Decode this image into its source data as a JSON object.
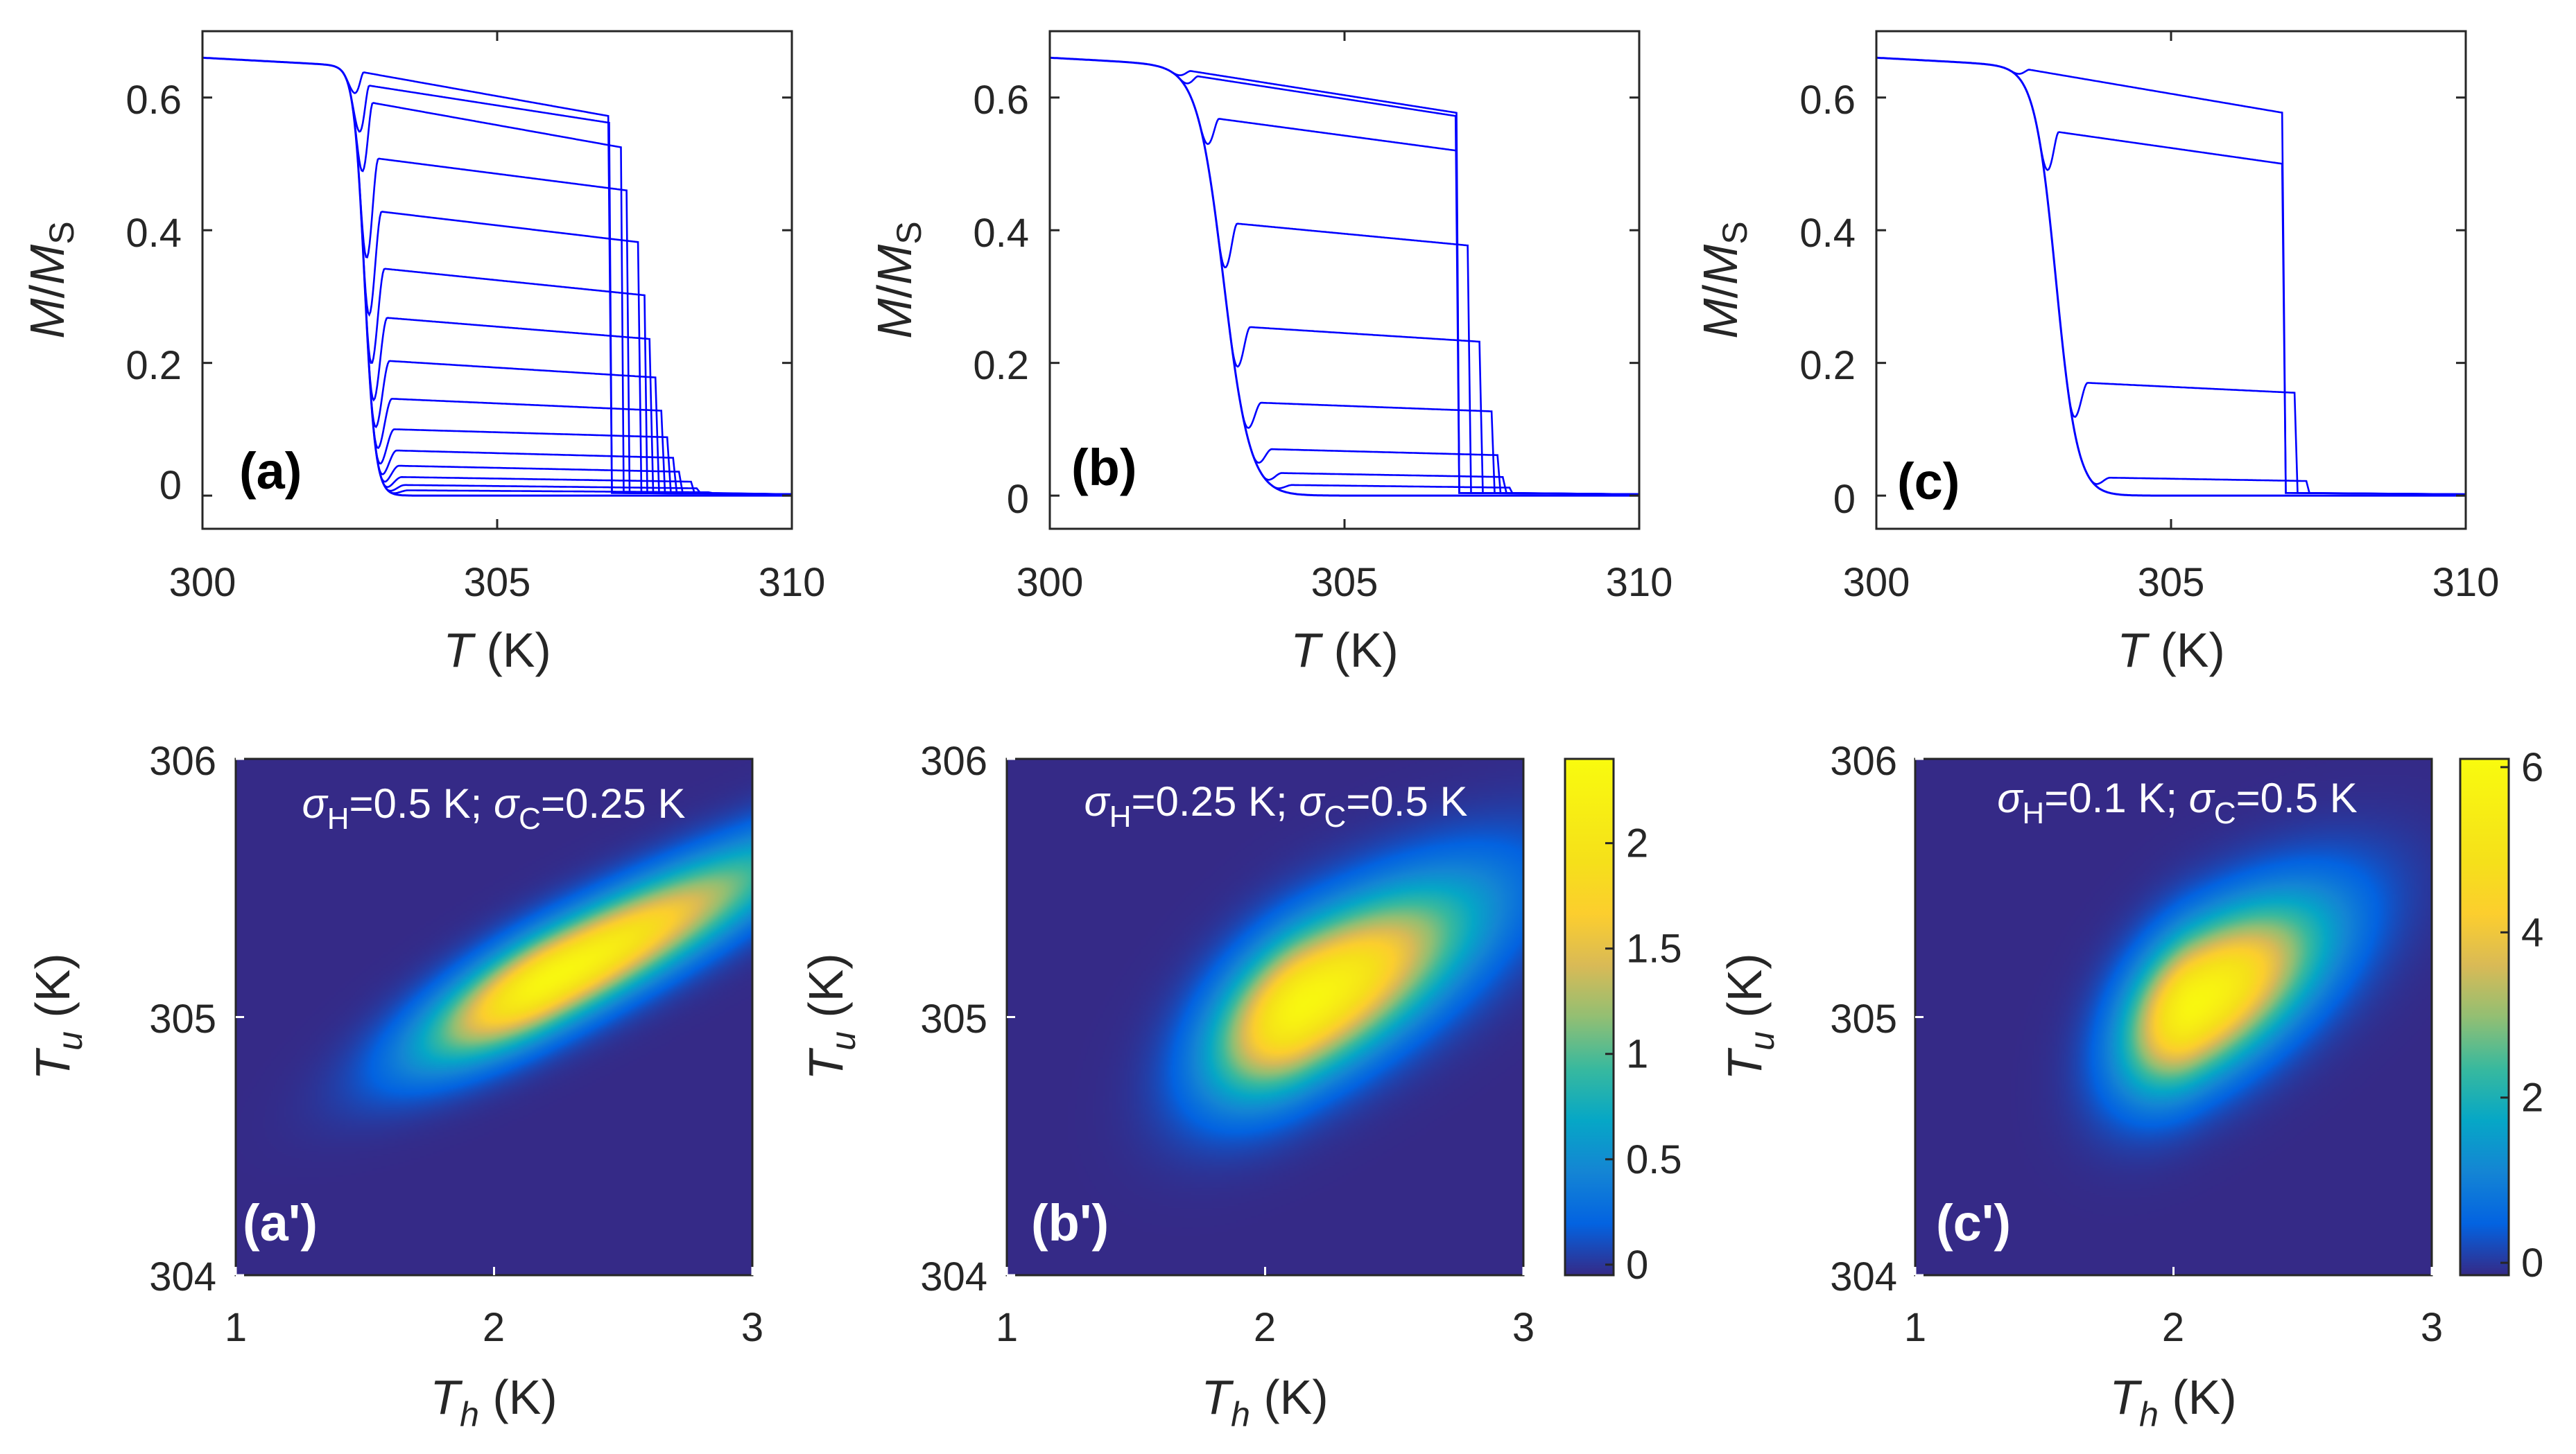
{
  "chart_data": [
    {
      "id": "a",
      "type": "line",
      "panel_label": "(a)",
      "xlabel": {
        "italic": "T",
        "rest": " (K)"
      },
      "ylabel": {
        "num": "M",
        "slash": "/",
        "den": "M",
        "sub": "S"
      },
      "xlim": [
        300,
        310
      ],
      "ylim": [
        -0.05,
        0.7
      ],
      "xticks": [
        "300",
        "305",
        "310"
      ],
      "yticks": [
        "0",
        "0.2",
        "0.4",
        "0.6"
      ],
      "yticks_values": [
        0,
        0.2,
        0.4,
        0.6
      ],
      "xticks_values": [
        300,
        305,
        310
      ],
      "series_color": "#0000ff",
      "transition_T": 302.75,
      "transition_width": 0.09,
      "reversal_curves": [
        {
          "m0": 0.638,
          "m_end": 0.572,
          "T_end": 306.9
        },
        {
          "m0": 0.618,
          "m_end": 0.562,
          "T_end": 306.9
        },
        {
          "m0": 0.592,
          "m_end": 0.525,
          "T_end": 307.1
        },
        {
          "m0": 0.508,
          "m_end": 0.46,
          "T_end": 307.2
        },
        {
          "m0": 0.428,
          "m_end": 0.382,
          "T_end": 307.4
        },
        {
          "m0": 0.342,
          "m_end": 0.302,
          "T_end": 307.5
        },
        {
          "m0": 0.268,
          "m_end": 0.236,
          "T_end": 307.6
        },
        {
          "m0": 0.203,
          "m_end": 0.178,
          "T_end": 307.7
        },
        {
          "m0": 0.146,
          "m_end": 0.128,
          "T_end": 307.8
        },
        {
          "m0": 0.1,
          "m_end": 0.088,
          "T_end": 307.9
        },
        {
          "m0": 0.068,
          "m_end": 0.057,
          "T_end": 308.0
        },
        {
          "m0": 0.045,
          "m_end": 0.036,
          "T_end": 308.1
        },
        {
          "m0": 0.028,
          "m_end": 0.021,
          "T_end": 308.3
        },
        {
          "m0": 0.016,
          "m_end": 0.011,
          "T_end": 308.4
        },
        {
          "m0": 0.008,
          "m_end": 0.005,
          "T_end": 308.6
        }
      ]
    },
    {
      "id": "b",
      "type": "line",
      "panel_label": "(b)",
      "xlabel": {
        "italic": "T",
        "rest": " (K)"
      },
      "ylabel": {
        "num": "M",
        "slash": "/",
        "den": "M",
        "sub": "S"
      },
      "xlim": [
        300,
        310
      ],
      "ylim": [
        -0.05,
        0.7
      ],
      "xticks": [
        "300",
        "305",
        "310"
      ],
      "yticks": [
        "0",
        "0.2",
        "0.4",
        "0.6"
      ],
      "yticks_values": [
        0,
        0.2,
        0.4,
        0.6
      ],
      "xticks_values": [
        300,
        305,
        310
      ],
      "series_color": "#0000ff",
      "transition_T": 302.95,
      "transition_width": 0.22,
      "reversal_curves": [
        {
          "m0": 0.64,
          "m_end": 0.577,
          "T_end": 306.9
        },
        {
          "m0": 0.632,
          "m_end": 0.572,
          "T_end": 306.9
        },
        {
          "m0": 0.568,
          "m_end": 0.52,
          "T_end": 306.9
        },
        {
          "m0": 0.41,
          "m_end": 0.377,
          "T_end": 307.1
        },
        {
          "m0": 0.254,
          "m_end": 0.232,
          "T_end": 307.3
        },
        {
          "m0": 0.14,
          "m_end": 0.127,
          "T_end": 307.5
        },
        {
          "m0": 0.07,
          "m_end": 0.061,
          "T_end": 307.6
        },
        {
          "m0": 0.034,
          "m_end": 0.028,
          "T_end": 307.7
        },
        {
          "m0": 0.016,
          "m_end": 0.012,
          "T_end": 307.8
        }
      ]
    },
    {
      "id": "c",
      "type": "line",
      "panel_label": "(c)",
      "xlabel": {
        "italic": "T",
        "rest": " (K)"
      },
      "ylabel": {
        "num": "M",
        "slash": "/",
        "den": "M",
        "sub": "S"
      },
      "xlim": [
        300,
        310
      ],
      "ylim": [
        -0.05,
        0.7
      ],
      "xticks": [
        "300",
        "305",
        "310"
      ],
      "yticks": [
        "0",
        "0.2",
        "0.4",
        "0.6"
      ],
      "yticks_values": [
        0,
        0.2,
        0.4,
        0.6
      ],
      "xticks_values": [
        300,
        305,
        310
      ],
      "series_color": "#0000ff",
      "transition_T": 303.05,
      "transition_width": 0.18,
      "reversal_curves": [
        {
          "m0": 0.642,
          "m_end": 0.577,
          "T_end": 306.9
        },
        {
          "m0": 0.548,
          "m_end": 0.5,
          "T_end": 306.9
        },
        {
          "m0": 0.17,
          "m_end": 0.155,
          "T_end": 307.1
        },
        {
          "m0": 0.027,
          "m_end": 0.022,
          "T_end": 307.3
        }
      ]
    },
    {
      "id": "a'",
      "type": "heatmap",
      "panel_label": "(a')",
      "xlabel": {
        "italic": "T",
        "sub": "h",
        "rest": " (K)"
      },
      "ylabel": {
        "italic": "T",
        "sub": "u",
        "rest": " (K)"
      },
      "xlim": [
        1,
        3
      ],
      "ylim": [
        304,
        306
      ],
      "xticks": [
        "1",
        "2",
        "3"
      ],
      "yticks": [
        "304",
        "305",
        "306"
      ],
      "xticks_values": [
        1,
        2,
        3
      ],
      "yticks_values": [
        304,
        305,
        306
      ],
      "annotation": {
        "s1": "σ",
        "s1sub": "H",
        "s1val": "=0.5 K; ",
        "s2": "σ",
        "s2sub": "C",
        "s2val": "=0.25 K"
      },
      "sigma_H": 0.5,
      "sigma_C": 0.25,
      "peak": {
        "Th": 2.22,
        "Tu": 305.15
      },
      "max_value": 2.4,
      "colorbar": null
    },
    {
      "id": "b'",
      "type": "heatmap",
      "panel_label": "(b')",
      "xlabel": {
        "italic": "T",
        "sub": "h",
        "rest": " (K)"
      },
      "ylabel": {
        "italic": "T",
        "sub": "u",
        "rest": " (K)"
      },
      "xlim": [
        1,
        3
      ],
      "ylim": [
        304,
        306
      ],
      "xticks": [
        "1",
        "2",
        "3"
      ],
      "yticks": [
        "304",
        "305",
        "306"
      ],
      "xticks_values": [
        1,
        2,
        3
      ],
      "yticks_values": [
        304,
        305,
        306
      ],
      "annotation": {
        "s1": "σ",
        "s1sub": "H",
        "s1val": "=0.25 K; ",
        "s2": "σ",
        "s2sub": "C",
        "s2val": "=0.5 K"
      },
      "sigma_H": 0.25,
      "sigma_C": 0.5,
      "peak": {
        "Th": 2.15,
        "Tu": 305.05
      },
      "max_value": 2.4,
      "colorbar": {
        "min": -0.05,
        "max": 2.4,
        "ticks": [
          "0",
          "0.5",
          "1",
          "1.5",
          "2"
        ],
        "tick_values": [
          0,
          0.5,
          1,
          1.5,
          2
        ]
      }
    },
    {
      "id": "c'",
      "type": "heatmap",
      "panel_label": "(c')",
      "xlabel": {
        "italic": "T",
        "sub": "h",
        "rest": " (K)"
      },
      "ylabel": {
        "italic": "T",
        "sub": "u",
        "rest": " (K)"
      },
      "xlim": [
        1,
        3
      ],
      "ylim": [
        304,
        306
      ],
      "xticks": [
        "1",
        "2",
        "3"
      ],
      "yticks": [
        "304",
        "305",
        "306"
      ],
      "xticks_values": [
        1,
        2,
        3
      ],
      "yticks_values": [
        304,
        305,
        306
      ],
      "annotation": {
        "s1": "σ",
        "s1sub": "H",
        "s1val": "=0.1 K; ",
        "s2": "σ",
        "s2sub": "C",
        "s2val": "=0.5 K"
      },
      "sigma_H": 0.1,
      "sigma_C": 0.5,
      "peak": {
        "Th": 2.08,
        "Tu": 305.05
      },
      "max_value": 6.1,
      "colorbar": {
        "min": -0.15,
        "max": 6.1,
        "ticks": [
          "0",
          "2",
          "4",
          "6"
        ],
        "tick_values": [
          0,
          2,
          4,
          6
        ]
      }
    }
  ]
}
